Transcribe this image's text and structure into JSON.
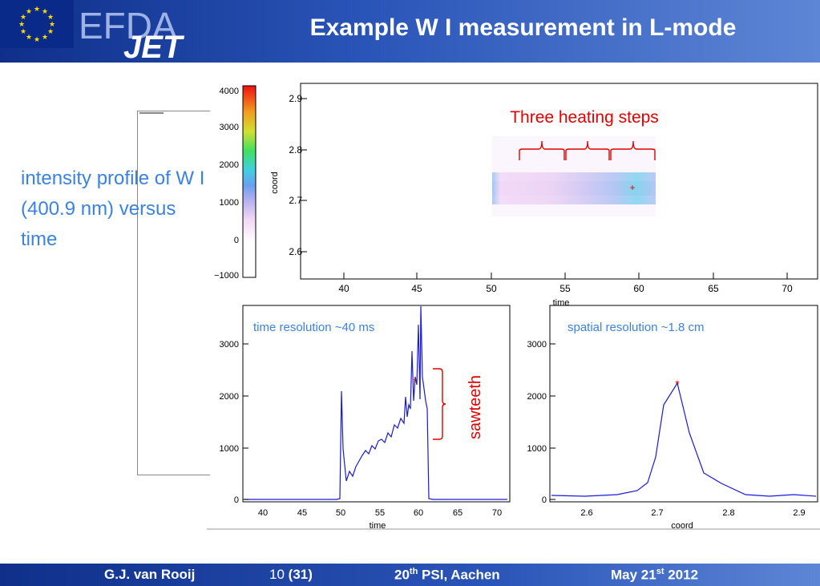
{
  "title": "Example W I measurement in L-mode",
  "logo": {
    "efda": "EFDA",
    "jet": "JET"
  },
  "left_text": "intensity profile of W I (400.9 nm) versus time",
  "colorbar": {
    "ticks": [
      "4000",
      "3000",
      "2000",
      "1000",
      "0",
      "−1000"
    ]
  },
  "top_plot": {
    "annotation": "Three heating steps",
    "ylabel": "coord",
    "xlabel": "time",
    "yticks": [
      "2.9",
      "2.8",
      "2.7",
      "2.6"
    ],
    "xticks": [
      "40",
      "45",
      "50",
      "55",
      "60",
      "65",
      "70"
    ]
  },
  "bottom_left": {
    "annotation": "time resolution ~40 ms",
    "side_label": "sawteeth",
    "xlabel": "time",
    "yticks": [
      "3000",
      "2000",
      "1000",
      "0"
    ],
    "xticks": [
      "40",
      "45",
      "50",
      "55",
      "60",
      "65",
      "70"
    ]
  },
  "bottom_right": {
    "annotation": "spatial resolution ~1.8 cm",
    "xlabel": "coord",
    "yticks": [
      "3000",
      "2000",
      "1000",
      "0"
    ],
    "xticks": [
      "2.6",
      "2.7",
      "2.8",
      "2.9"
    ]
  },
  "footer": {
    "author": "G.J. van Rooij",
    "page": "10",
    "total": "(31)",
    "conf_num": "20",
    "conf_sup": "th",
    "conf_rest": "PSI, Aachen",
    "date_pre": "May 21",
    "date_sup": "st",
    "date_year": "2012"
  },
  "colors": {
    "annotation_red": "#e00000",
    "annotation_blue": "#3b82e0",
    "trace_blue": "#1a1adc"
  }
}
